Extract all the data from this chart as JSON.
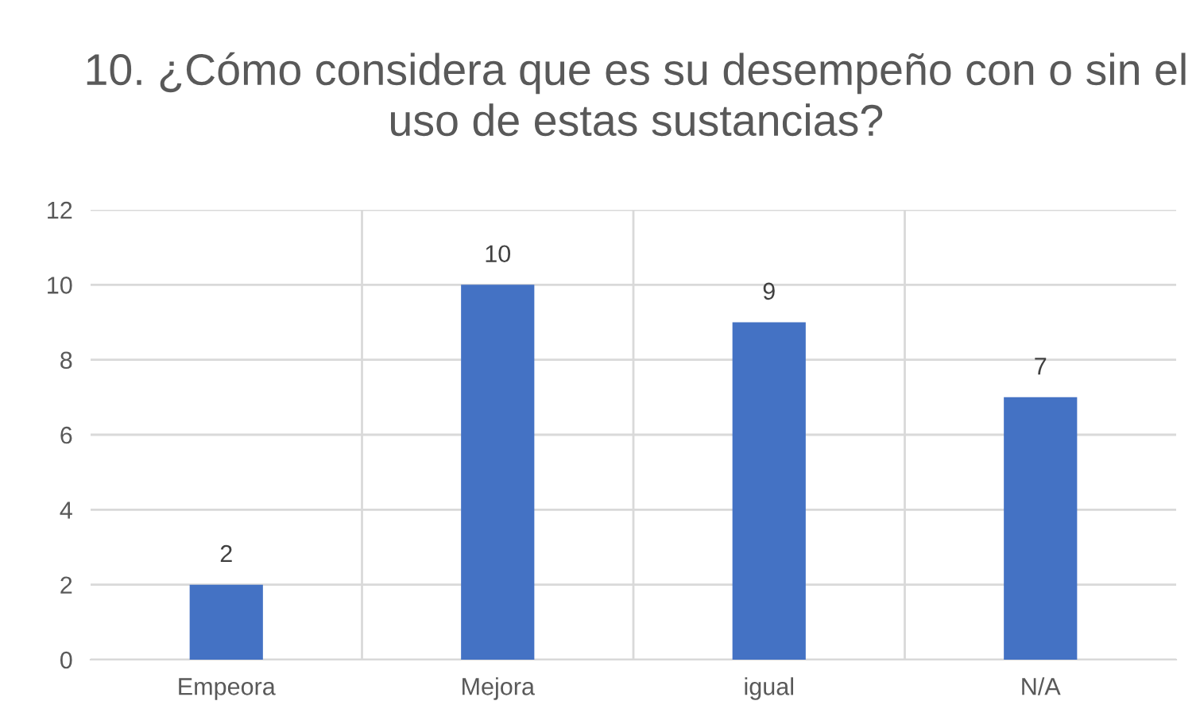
{
  "chart_data": {
    "type": "bar",
    "title": "10. ¿Cómo considera que es su desempeño con o sin el uso de estas sustancias?",
    "categories": [
      "Empeora",
      "Mejora",
      "igual",
      "N/A"
    ],
    "values": [
      2,
      10,
      9,
      7
    ],
    "color": "#4472c4",
    "ylim": [
      0,
      12
    ],
    "yticks": [
      0,
      2,
      4,
      6,
      8,
      10,
      12
    ],
    "grid": true,
    "data_labels": true
  }
}
